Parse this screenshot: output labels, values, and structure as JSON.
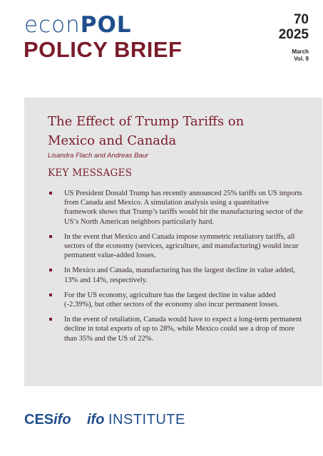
{
  "header": {
    "logo_econ": "econ",
    "logo_pol": "POL",
    "series": "POLICY BRIEF",
    "issue_number": "70",
    "issue_year": "2025",
    "issue_month": "March",
    "issue_volume": "Vol. 9"
  },
  "brief": {
    "title": "The Effect of Trump Tariffs on Mexico and Canada",
    "authors": "Lisandra Flach and Andreas Baur",
    "section_heading": "KEY MESSAGES",
    "messages": [
      "US President Donald Trump has recently announced 25% tariffs on US imports from Canada and Mexico. A simulation analysis using a quantitative framework shows that Trump’s tariffs would hit the manufacturing sector of the US’s North American neighbors particularly hard.",
      "In the event that Mexico and Canada impose symmetric retaliatory tariffs, all sectors of the economy (services, agriculture, and manufacturing) would incur permanent value-added losses.",
      "In Mexico and Canada, manufacturing has the largest decline in value added, 13% and 14%, respectively.",
      "For the US economy, agriculture has the largest decline in value added (-2.39%), but other sectors of the economy also incur permanent losses.",
      "In the event of retaliation, Canada would have to expect a long-term permanent decline in total exports of up to 28%, while Mexico could see a drop of more than 35% and the US of 22%."
    ]
  },
  "footer": {
    "ces_logo_ces": "CES",
    "ces_logo_ifo": "ifo",
    "ifo_logo_ifo": "ifo",
    "ifo_logo_institute": "INSTITUTE"
  }
}
